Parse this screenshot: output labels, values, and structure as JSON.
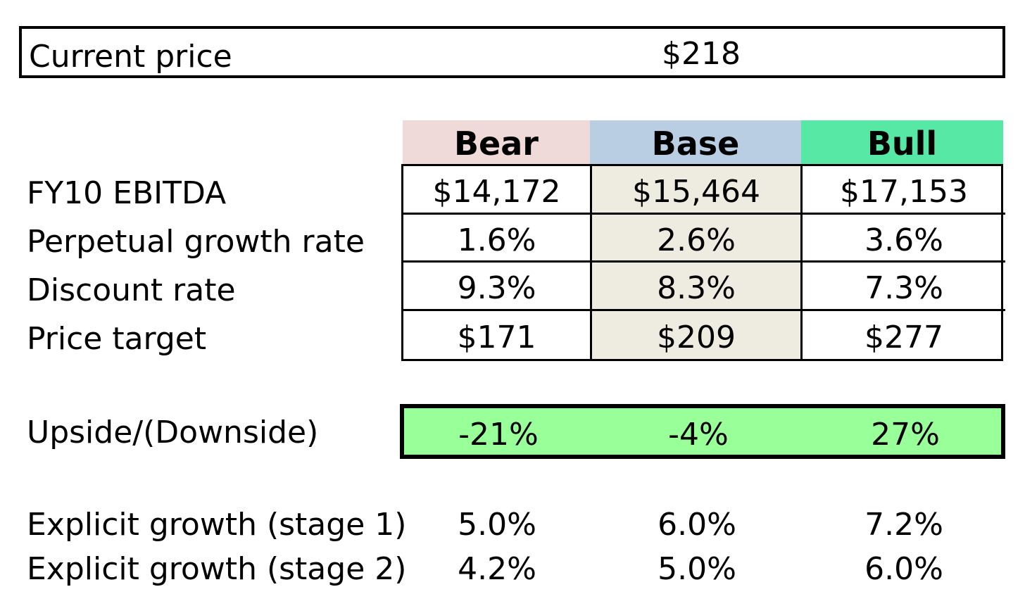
{
  "current_price": {
    "label": "Current price",
    "value": "$218"
  },
  "scenarios": {
    "headers": [
      "Bear",
      "Base",
      "Bull"
    ],
    "colors": {
      "bear": "#efdad9",
      "base": "#b9cde3",
      "bull": "#57e8a5",
      "base_column": "#eeebe0",
      "upside_fill": "#99ff99"
    }
  },
  "table": {
    "rows": [
      {
        "label": "FY10 EBITDA",
        "values": [
          "$14,172",
          "$15,464",
          "$17,153"
        ]
      },
      {
        "label": "Perpetual growth rate",
        "values": [
          "1.6%",
          "2.6%",
          "3.6%"
        ]
      },
      {
        "label": "Discount rate",
        "values": [
          "9.3%",
          "8.3%",
          "7.3%"
        ]
      },
      {
        "label": "Price target",
        "values": [
          "$171",
          "$209",
          "$277"
        ]
      }
    ]
  },
  "upside": {
    "label": "Upside/(Downside)",
    "values": [
      "-21%",
      "-4%",
      "27%"
    ]
  },
  "growth": {
    "rows": [
      {
        "label": "Explicit growth (stage 1)",
        "values": [
          "5.0%",
          "6.0%",
          "7.2%"
        ]
      },
      {
        "label": "Explicit growth (stage 2)",
        "values": [
          "4.2%",
          "5.0%",
          "6.0%"
        ]
      }
    ]
  }
}
